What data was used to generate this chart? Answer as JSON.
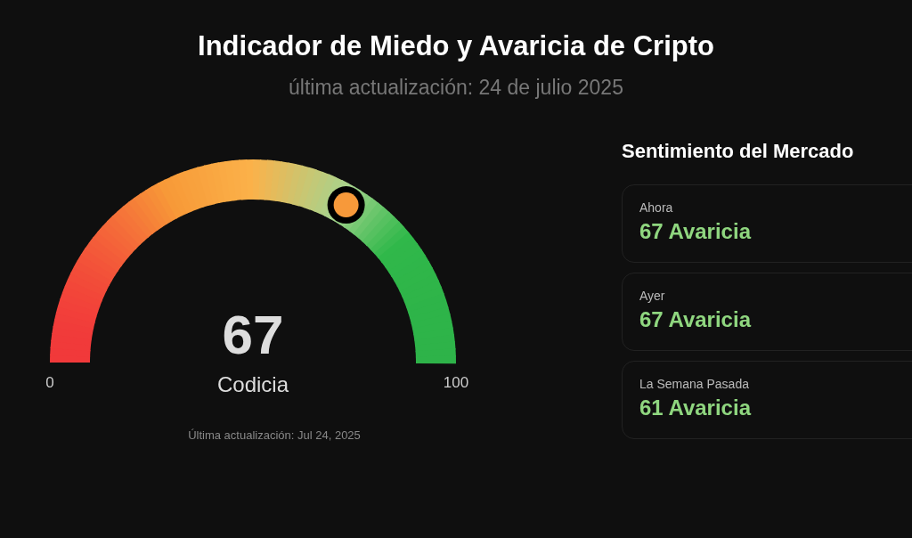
{
  "chart_data": [
    {
      "type": "other",
      "title": "Indicador de Miedo y Avaricia de Cripto",
      "subtitle": "última actualización: 24 de julio 2025",
      "categories": [
        "Codicia"
      ],
      "values": [
        67
      ],
      "value_labels": [
        "67"
      ],
      "color": "#f7993a",
      "annotations": [
        "0",
        "100",
        "Última actualización: Jul 24, 2025"
      ]
    },
    {
      "type": "other",
      "title": "Sentimiento del Mercado",
      "categories": [
        "Ahora",
        "Ayer",
        "La Semana Pasada"
      ],
      "value_labels": [
        "67 Avaricia",
        "67 Avaricia",
        "61 Avaricia"
      ],
      "color": "#8fd67f"
    }
  ]
}
